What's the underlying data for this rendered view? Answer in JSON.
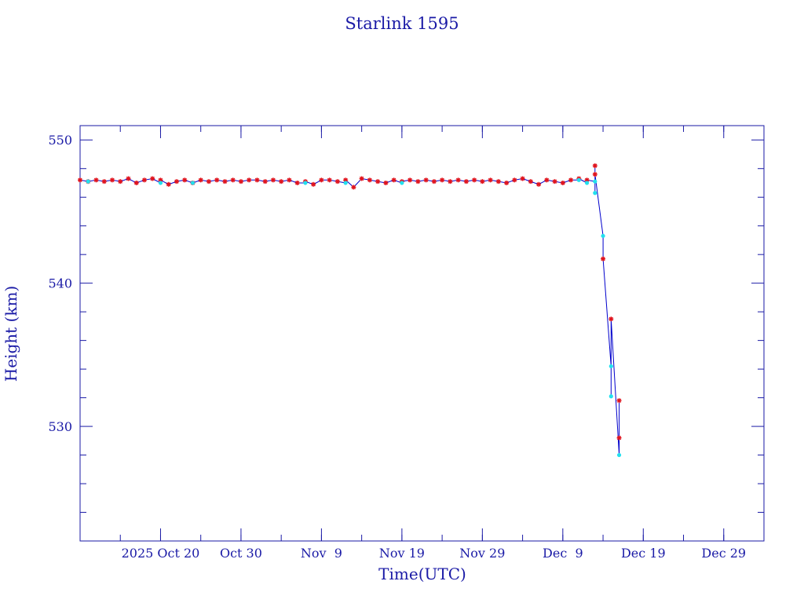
{
  "chart_data": {
    "type": "line",
    "title": "Starlink 1595",
    "xlabel": "Time(UTC)",
    "ylabel": "Height (km)",
    "x_ticks": [
      "2025 Oct 20",
      "Oct 30",
      "Nov  9",
      "Nov 19",
      "Nov 29",
      "Dec  9",
      "Dec 19",
      "Dec 29"
    ],
    "x_tick_dates": [
      "2025-10-20",
      "2025-10-30",
      "2025-11-09",
      "2025-11-19",
      "2025-11-29",
      "2025-12-09",
      "2025-12-19",
      "2025-12-29"
    ],
    "xlim": [
      "2025-10-10",
      "2026-01-03"
    ],
    "y_ticks": [
      "530",
      "540",
      "550"
    ],
    "y_tick_values": [
      530,
      540,
      550
    ],
    "ylim": [
      522,
      551
    ],
    "grid": false,
    "colors": {
      "axis": "#1a1aa6",
      "line": "#0000cc",
      "red_markers": "#e0141e",
      "cyan_markers": "#22e0ee"
    },
    "series": [
      {
        "marker": "red-star",
        "x": [
          "2025-10-10",
          "2025-10-11",
          "2025-10-12",
          "2025-10-13",
          "2025-10-14",
          "2025-10-15",
          "2025-10-16",
          "2025-10-17",
          "2025-10-18",
          "2025-10-19",
          "2025-10-20",
          "2025-10-21",
          "2025-10-22",
          "2025-10-23",
          "2025-10-24",
          "2025-10-25",
          "2025-10-26",
          "2025-10-27",
          "2025-10-28",
          "2025-10-29",
          "2025-10-30",
          "2025-10-31",
          "2025-11-01",
          "2025-11-02",
          "2025-11-03",
          "2025-11-04",
          "2025-11-05",
          "2025-11-06",
          "2025-11-07",
          "2025-11-08",
          "2025-11-09",
          "2025-11-10",
          "2025-11-11",
          "2025-11-12",
          "2025-11-13",
          "2025-11-14",
          "2025-11-15",
          "2025-11-16",
          "2025-11-17",
          "2025-11-18",
          "2025-11-19",
          "2025-11-20",
          "2025-11-21",
          "2025-11-22",
          "2025-11-23",
          "2025-11-24",
          "2025-11-25",
          "2025-11-26",
          "2025-11-27",
          "2025-11-28",
          "2025-11-29",
          "2025-11-30",
          "2025-12-01",
          "2025-12-02",
          "2025-12-03",
          "2025-12-04",
          "2025-12-05",
          "2025-12-06",
          "2025-12-07",
          "2025-12-08",
          "2025-12-09",
          "2025-12-10",
          "2025-12-11",
          "2025-12-12",
          "2025-12-13",
          "2025-12-13",
          "2025-12-14",
          "2025-12-15",
          "2025-12-16",
          "2025-12-16"
        ],
        "y": [
          547.2,
          547.1,
          547.2,
          547.1,
          547.2,
          547.1,
          547.3,
          547.0,
          547.2,
          547.3,
          547.2,
          546.9,
          547.1,
          547.2,
          547.0,
          547.2,
          547.1,
          547.2,
          547.1,
          547.2,
          547.1,
          547.2,
          547.2,
          547.1,
          547.2,
          547.1,
          547.2,
          547.0,
          547.1,
          546.9,
          547.2,
          547.2,
          547.1,
          547.2,
          546.7,
          547.3,
          547.2,
          547.1,
          547.0,
          547.2,
          547.1,
          547.2,
          547.1,
          547.2,
          547.1,
          547.2,
          547.1,
          547.2,
          547.1,
          547.2,
          547.1,
          547.2,
          547.1,
          547.0,
          547.2,
          547.3,
          547.1,
          546.9,
          547.2,
          547.1,
          547.0,
          547.2,
          547.3,
          547.2,
          548.2,
          547.6,
          541.7,
          537.5,
          531.8,
          529.2
        ]
      },
      {
        "marker": "cyan-dot",
        "x": [
          "2025-10-11",
          "2025-10-20",
          "2025-10-24",
          "2025-11-07",
          "2025-11-12",
          "2025-11-19",
          "2025-12-11",
          "2025-12-12",
          "2025-12-13",
          "2025-12-13",
          "2025-12-14",
          "2025-12-15",
          "2025-12-15",
          "2025-12-16"
        ],
        "y": [
          547.1,
          547.0,
          547.0,
          547.0,
          547.0,
          547.0,
          547.2,
          547.0,
          547.1,
          546.3,
          543.3,
          534.2,
          532.1,
          528.0
        ]
      }
    ]
  }
}
